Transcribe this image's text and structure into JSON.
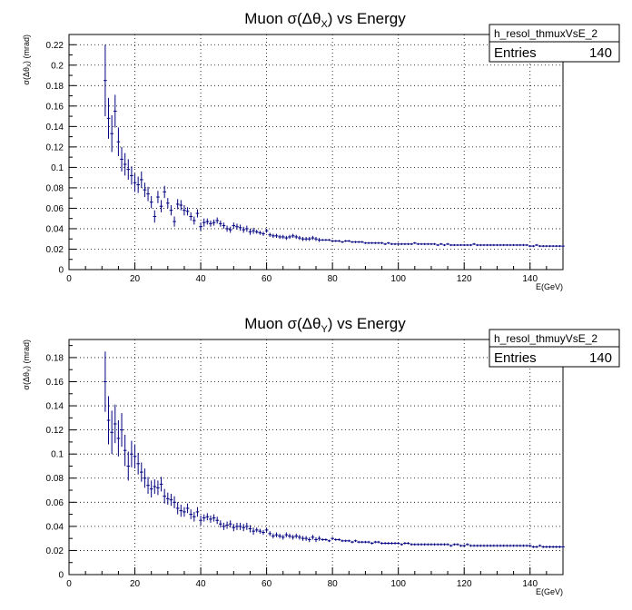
{
  "chart_data": [
    {
      "type": "scatter",
      "title": "Muon σ(Δθ",
      "title_sub": "X",
      "title_rest": ") vs Energy",
      "xlabel": "E(GeV)",
      "ylabel": "σ(Δθ",
      "ylabel_sub": "X",
      "ylabel_rest": ") (mrad)",
      "xlim": [
        0,
        150
      ],
      "ylim": [
        0,
        0.23
      ],
      "xticks": [
        0,
        20,
        40,
        60,
        80,
        100,
        120,
        140
      ],
      "yticks": [
        0,
        0.02,
        0.04,
        0.06,
        0.08,
        0.1,
        0.12,
        0.14,
        0.16,
        0.18,
        0.2,
        0.22
      ],
      "grid": true,
      "stats": {
        "name": "h_resol_thmuxVsE_2",
        "entries_label": "Entries",
        "entries_value": "140"
      },
      "series": [
        {
          "color": "#000080",
          "x": [
            11,
            12,
            13,
            14,
            15,
            16,
            17,
            18,
            19,
            20,
            21,
            22,
            23,
            24,
            25,
            26,
            27,
            28,
            29,
            30,
            31,
            32,
            33,
            34,
            35,
            36,
            37,
            38,
            39,
            40,
            41,
            42,
            43,
            44,
            45,
            46,
            47,
            48,
            49,
            50,
            51,
            52,
            53,
            54,
            55,
            56,
            57,
            58,
            59,
            60,
            61,
            62,
            63,
            64,
            65,
            66,
            67,
            68,
            69,
            70,
            71,
            72,
            73,
            74,
            75,
            76,
            77,
            78,
            79,
            80,
            81,
            82,
            83,
            84,
            85,
            86,
            87,
            88,
            89,
            90,
            91,
            92,
            93,
            94,
            95,
            96,
            97,
            98,
            99,
            100,
            101,
            102,
            103,
            104,
            105,
            106,
            107,
            108,
            109,
            110,
            111,
            112,
            113,
            114,
            115,
            116,
            117,
            118,
            119,
            120,
            121,
            122,
            123,
            124,
            125,
            126,
            127,
            128,
            129,
            130,
            131,
            132,
            133,
            134,
            135,
            136,
            137,
            138,
            139,
            140,
            141,
            142,
            143,
            144,
            145,
            146,
            147,
            148,
            149,
            150
          ],
          "y": [
            0.185,
            0.148,
            0.133,
            0.155,
            0.125,
            0.108,
            0.103,
            0.098,
            0.092,
            0.085,
            0.083,
            0.088,
            0.078,
            0.074,
            0.066,
            0.052,
            0.071,
            0.062,
            0.076,
            0.065,
            0.058,
            0.047,
            0.064,
            0.063,
            0.058,
            0.057,
            0.052,
            0.048,
            0.055,
            0.042,
            0.046,
            0.047,
            0.045,
            0.046,
            0.048,
            0.045,
            0.043,
            0.04,
            0.039,
            0.043,
            0.042,
            0.041,
            0.039,
            0.04,
            0.037,
            0.038,
            0.037,
            0.036,
            0.035,
            0.038,
            0.034,
            0.033,
            0.033,
            0.032,
            0.032,
            0.031,
            0.032,
            0.033,
            0.032,
            0.031,
            0.03,
            0.03,
            0.03,
            0.031,
            0.03,
            0.029,
            0.029,
            0.029,
            0.029,
            0.028,
            0.028,
            0.028,
            0.027,
            0.028,
            0.028,
            0.027,
            0.027,
            0.027,
            0.027,
            0.026,
            0.026,
            0.026,
            0.026,
            0.026,
            0.026,
            0.025,
            0.026,
            0.025,
            0.025,
            0.025,
            0.025,
            0.025,
            0.025,
            0.025,
            0.026,
            0.025,
            0.025,
            0.025,
            0.025,
            0.025,
            0.025,
            0.024,
            0.025,
            0.024,
            0.025,
            0.024,
            0.024,
            0.024,
            0.024,
            0.024,
            0.024,
            0.024,
            0.025,
            0.024,
            0.024,
            0.024,
            0.024,
            0.024,
            0.024,
            0.024,
            0.024,
            0.024,
            0.024,
            0.024,
            0.024,
            0.024,
            0.024,
            0.024,
            0.024,
            0.023,
            0.023,
            0.024,
            0.023,
            0.023,
            0.023,
            0.023,
            0.023,
            0.023,
            0.023,
            0.023
          ],
          "err": [
            0.035,
            0.02,
            0.018,
            0.016,
            0.014,
            0.012,
            0.011,
            0.01,
            0.009,
            0.009,
            0.008,
            0.008,
            0.007,
            0.007,
            0.006,
            0.006,
            0.006,
            0.006,
            0.006,
            0.005,
            0.005,
            0.005,
            0.005,
            0.005,
            0.005,
            0.004,
            0.004,
            0.004,
            0.004,
            0.004,
            0.004,
            0.003,
            0.003,
            0.003,
            0.003,
            0.003,
            0.003,
            0.003,
            0.003,
            0.003,
            0.003,
            0.003,
            0.003,
            0.003,
            0.003,
            0.003,
            0.002,
            0.002,
            0.002,
            0.002,
            0.002,
            0.002,
            0.002,
            0.002,
            0.002,
            0.002,
            0.002,
            0.002,
            0.002,
            0.002,
            0.002,
            0.002,
            0.002,
            0.002,
            0.002,
            0.002,
            0.001,
            0.001,
            0.001,
            0.001,
            0.001,
            0.001,
            0.001,
            0.001,
            0.001,
            0.001,
            0.001,
            0.001,
            0.001,
            0.001,
            0.001,
            0.001,
            0.001,
            0.001,
            0.001,
            0.001,
            0.001,
            0.001,
            0.001,
            0.001,
            0.001,
            0.001,
            0.001,
            0.001,
            0.001,
            0.001,
            0.001,
            0.001,
            0.001,
            0.001,
            0.001,
            0.001,
            0.001,
            0.001,
            0.001,
            0.001,
            0.001,
            0.001,
            0.001,
            0.001,
            0.001,
            0.001,
            0.001,
            0.001,
            0.001,
            0.001,
            0.001,
            0.001,
            0.001,
            0.001,
            0.001,
            0.001,
            0.001,
            0.001,
            0.001,
            0.001,
            0.001,
            0.001,
            0.001,
            0.001,
            0.001,
            0.001,
            0.001,
            0.001,
            0.001,
            0.001,
            0.001,
            0.001,
            0.001,
            0.001
          ]
        }
      ]
    },
    {
      "type": "scatter",
      "title": "Muon σ(Δθ",
      "title_sub": "Y",
      "title_rest": ") vs Energy",
      "xlabel": "E(GeV)",
      "ylabel": "σ(Δθ",
      "ylabel_sub": "Y",
      "ylabel_rest": ") (mrad)",
      "xlim": [
        0,
        150
      ],
      "ylim": [
        0,
        0.195
      ],
      "xticks": [
        0,
        20,
        40,
        60,
        80,
        100,
        120,
        140
      ],
      "yticks": [
        0,
        0.02,
        0.04,
        0.06,
        0.08,
        0.1,
        0.12,
        0.14,
        0.16,
        0.18
      ],
      "grid": true,
      "stats": {
        "name": "h_resol_thmuyVsE_2",
        "entries_label": "Entries",
        "entries_value": "140"
      },
      "series": [
        {
          "color": "#000080",
          "x": [
            11,
            12,
            13,
            14,
            15,
            16,
            17,
            18,
            19,
            20,
            21,
            22,
            23,
            24,
            25,
            26,
            27,
            28,
            29,
            30,
            31,
            32,
            33,
            34,
            35,
            36,
            37,
            38,
            39,
            40,
            41,
            42,
            43,
            44,
            45,
            46,
            47,
            48,
            49,
            50,
            51,
            52,
            53,
            54,
            55,
            56,
            57,
            58,
            59,
            60,
            61,
            62,
            63,
            64,
            65,
            66,
            67,
            68,
            69,
            70,
            71,
            72,
            73,
            74,
            75,
            76,
            77,
            78,
            79,
            80,
            81,
            82,
            83,
            84,
            85,
            86,
            87,
            88,
            89,
            90,
            91,
            92,
            93,
            94,
            95,
            96,
            97,
            98,
            99,
            100,
            101,
            102,
            103,
            104,
            105,
            106,
            107,
            108,
            109,
            110,
            111,
            112,
            113,
            114,
            115,
            116,
            117,
            118,
            119,
            120,
            121,
            122,
            123,
            124,
            125,
            126,
            127,
            128,
            129,
            130,
            131,
            132,
            133,
            134,
            135,
            136,
            137,
            138,
            139,
            140,
            141,
            142,
            143,
            144,
            145,
            146,
            147,
            148,
            149,
            150
          ],
          "y": [
            0.16,
            0.128,
            0.118,
            0.125,
            0.113,
            0.12,
            0.103,
            0.09,
            0.1,
            0.098,
            0.092,
            0.085,
            0.08,
            0.074,
            0.071,
            0.073,
            0.072,
            0.075,
            0.065,
            0.063,
            0.062,
            0.06,
            0.055,
            0.053,
            0.052,
            0.055,
            0.05,
            0.048,
            0.052,
            0.045,
            0.047,
            0.048,
            0.046,
            0.047,
            0.045,
            0.042,
            0.04,
            0.041,
            0.042,
            0.039,
            0.04,
            0.04,
            0.039,
            0.04,
            0.038,
            0.036,
            0.037,
            0.036,
            0.035,
            0.037,
            0.034,
            0.032,
            0.033,
            0.032,
            0.031,
            0.033,
            0.032,
            0.031,
            0.032,
            0.031,
            0.03,
            0.03,
            0.029,
            0.031,
            0.029,
            0.03,
            0.029,
            0.029,
            0.028,
            0.03,
            0.029,
            0.029,
            0.028,
            0.028,
            0.028,
            0.027,
            0.028,
            0.027,
            0.027,
            0.027,
            0.027,
            0.026,
            0.027,
            0.027,
            0.026,
            0.026,
            0.026,
            0.026,
            0.026,
            0.026,
            0.025,
            0.026,
            0.026,
            0.025,
            0.025,
            0.025,
            0.025,
            0.025,
            0.025,
            0.025,
            0.025,
            0.025,
            0.025,
            0.025,
            0.025,
            0.024,
            0.025,
            0.025,
            0.024,
            0.024,
            0.025,
            0.024,
            0.024,
            0.024,
            0.024,
            0.024,
            0.024,
            0.024,
            0.024,
            0.024,
            0.024,
            0.024,
            0.024,
            0.024,
            0.024,
            0.024,
            0.024,
            0.024,
            0.024,
            0.024,
            0.023,
            0.023,
            0.024,
            0.023,
            0.023,
            0.023,
            0.023,
            0.023,
            0.023,
            0.023
          ],
          "err": [
            0.025,
            0.02,
            0.018,
            0.016,
            0.015,
            0.014,
            0.013,
            0.012,
            0.011,
            0.01,
            0.009,
            0.008,
            0.008,
            0.007,
            0.007,
            0.006,
            0.006,
            0.006,
            0.006,
            0.005,
            0.005,
            0.005,
            0.005,
            0.005,
            0.004,
            0.004,
            0.004,
            0.004,
            0.004,
            0.004,
            0.003,
            0.003,
            0.003,
            0.003,
            0.003,
            0.003,
            0.003,
            0.003,
            0.003,
            0.003,
            0.003,
            0.003,
            0.003,
            0.003,
            0.003,
            0.003,
            0.002,
            0.002,
            0.002,
            0.002,
            0.002,
            0.002,
            0.002,
            0.002,
            0.002,
            0.002,
            0.002,
            0.002,
            0.002,
            0.002,
            0.002,
            0.002,
            0.002,
            0.002,
            0.002,
            0.002,
            0.001,
            0.001,
            0.001,
            0.001,
            0.001,
            0.001,
            0.001,
            0.001,
            0.001,
            0.001,
            0.001,
            0.001,
            0.001,
            0.001,
            0.001,
            0.001,
            0.001,
            0.001,
            0.001,
            0.001,
            0.001,
            0.001,
            0.001,
            0.001,
            0.001,
            0.001,
            0.001,
            0.001,
            0.001,
            0.001,
            0.001,
            0.001,
            0.001,
            0.001,
            0.001,
            0.001,
            0.001,
            0.001,
            0.001,
            0.001,
            0.001,
            0.001,
            0.001,
            0.001,
            0.001,
            0.001,
            0.001,
            0.001,
            0.001,
            0.001,
            0.001,
            0.001,
            0.001,
            0.001,
            0.001,
            0.001,
            0.001,
            0.001,
            0.001,
            0.001,
            0.001,
            0.001,
            0.001,
            0.001,
            0.001,
            0.001,
            0.001,
            0.001,
            0.001,
            0.001,
            0.001,
            0.001,
            0.001,
            0.001
          ]
        }
      ]
    }
  ]
}
